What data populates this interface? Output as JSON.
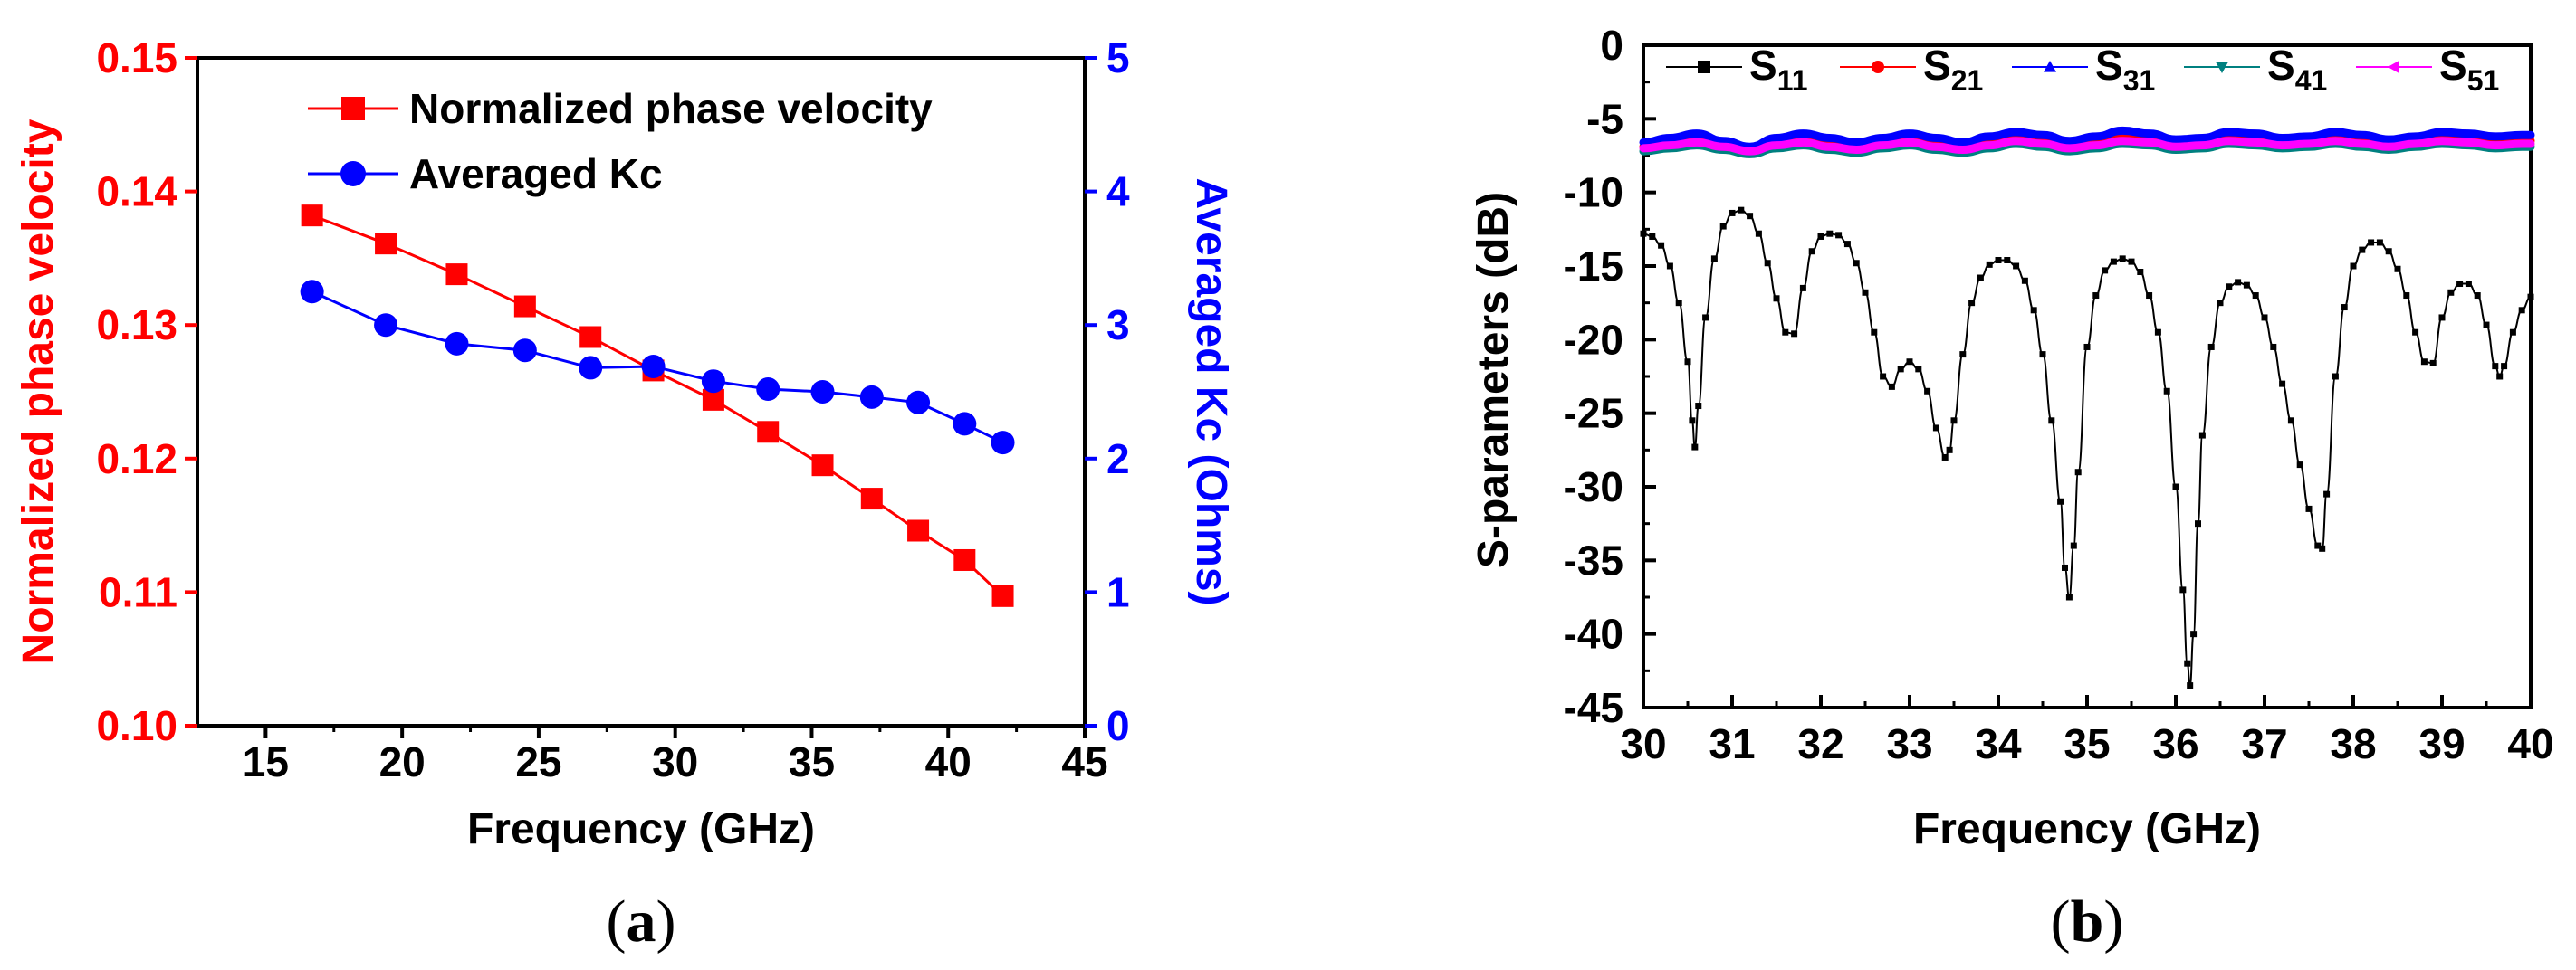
{
  "colors": {
    "red": "#ff0000",
    "blue": "#0000ff",
    "black": "#000000",
    "green": "#008080",
    "magenta": "#ff00ff"
  },
  "captions": {
    "a": {
      "open": "(",
      "letter": "a",
      "close": ")"
    },
    "b": {
      "open": "(",
      "letter": "b",
      "close": ")"
    }
  },
  "chart_data": [
    {
      "id": "a",
      "type": "line",
      "xlabel": "Frequency (GHz)",
      "ylabel_left": "Normalized phase velocity",
      "ylabel_right": "Averaged Kc (Ohms)",
      "xlim": [
        12.5,
        45
      ],
      "ylim_left": [
        0.1,
        0.15
      ],
      "ylim_right": [
        0,
        5
      ],
      "xticks": [
        "15",
        "20",
        "25",
        "30",
        "35",
        "40",
        "45"
      ],
      "yticks_left": [
        "0.10",
        "0.11",
        "0.12",
        "0.13",
        "0.14",
        "0.15"
      ],
      "yticks_right": [
        "0",
        "1",
        "2",
        "3",
        "4",
        "5"
      ],
      "legend_position": "top-right",
      "series": [
        {
          "name": "Normalized phase velocity",
          "axis": "left",
          "marker": "square",
          "color": "#ff0000",
          "x": [
            16.7,
            19.4,
            22.0,
            24.5,
            26.9,
            29.2,
            31.4,
            33.4,
            35.4,
            37.2,
            38.9,
            40.6,
            42.0
          ],
          "y": [
            0.1382,
            0.1361,
            0.1338,
            0.1314,
            0.1291,
            0.1266,
            0.1244,
            0.122,
            0.1195,
            0.117,
            0.1146,
            0.1124,
            0.1097
          ]
        },
        {
          "name": "Averaged Kc",
          "axis": "right",
          "marker": "circle",
          "color": "#0000ff",
          "x": [
            16.7,
            19.4,
            22.0,
            24.5,
            26.9,
            29.2,
            31.4,
            33.4,
            35.4,
            37.2,
            38.9,
            40.6,
            42.0
          ],
          "y": [
            3.25,
            3.0,
            2.86,
            2.81,
            2.68,
            2.69,
            2.58,
            2.52,
            2.5,
            2.46,
            2.42,
            2.26,
            2.12
          ]
        }
      ]
    },
    {
      "id": "b",
      "type": "line",
      "xlabel": "Frequency (GHz)",
      "ylabel": "S-parameters (dB)",
      "xlim": [
        30,
        40
      ],
      "ylim": [
        -45,
        0
      ],
      "xticks": [
        "30",
        "31",
        "32",
        "33",
        "34",
        "35",
        "36",
        "37",
        "38",
        "39",
        "40"
      ],
      "yticks": [
        "0",
        "-5",
        "-10",
        "-15",
        "-20",
        "-25",
        "-30",
        "-35",
        "-40",
        "-45"
      ],
      "legend_position": "top",
      "series": [
        {
          "name": "S",
          "sub": "11",
          "color": "#000000",
          "marker": "square",
          "x": [
            30.0,
            30.1,
            30.2,
            30.3,
            30.4,
            30.5,
            30.55,
            30.58,
            30.62,
            30.7,
            30.8,
            30.9,
            31.0,
            31.1,
            31.2,
            31.3,
            31.4,
            31.5,
            31.6,
            31.7,
            31.8,
            31.9,
            32.0,
            32.1,
            32.2,
            32.3,
            32.4,
            32.5,
            32.6,
            32.7,
            32.8,
            32.9,
            33.0,
            33.1,
            33.2,
            33.3,
            33.4,
            33.45,
            33.5,
            33.6,
            33.7,
            33.8,
            33.9,
            34.0,
            34.1,
            34.2,
            34.3,
            34.4,
            34.5,
            34.6,
            34.7,
            34.75,
            34.8,
            34.85,
            34.9,
            35.0,
            35.1,
            35.2,
            35.3,
            35.4,
            35.5,
            35.6,
            35.7,
            35.8,
            35.9,
            36.0,
            36.08,
            36.13,
            36.16,
            36.2,
            36.25,
            36.3,
            36.4,
            36.5,
            36.6,
            36.7,
            36.8,
            36.9,
            37.0,
            37.1,
            37.2,
            37.3,
            37.4,
            37.5,
            37.6,
            37.65,
            37.7,
            37.8,
            37.9,
            38.0,
            38.1,
            38.2,
            38.3,
            38.4,
            38.5,
            38.6,
            38.7,
            38.8,
            38.9,
            39.0,
            39.1,
            39.2,
            39.3,
            39.4,
            39.5,
            39.6,
            39.65,
            39.7,
            39.8,
            39.9,
            40.0
          ],
          "y": [
            -12.8,
            -13.0,
            -13.6,
            -15.0,
            -17.5,
            -21.5,
            -25.5,
            -27.3,
            -24.5,
            -18.5,
            -14.5,
            -12.3,
            -11.4,
            -11.2,
            -11.6,
            -12.8,
            -14.8,
            -17.2,
            -19.5,
            -19.6,
            -16.5,
            -14.0,
            -13.0,
            -12.8,
            -12.9,
            -13.5,
            -14.8,
            -16.8,
            -19.5,
            -22.5,
            -23.2,
            -22.0,
            -21.5,
            -22.0,
            -23.5,
            -26.0,
            -28.0,
            -27.5,
            -25.5,
            -21.0,
            -17.5,
            -15.8,
            -14.9,
            -14.6,
            -14.6,
            -15.0,
            -16.0,
            -18.0,
            -21.0,
            -25.5,
            -31.0,
            -35.5,
            -37.5,
            -34.0,
            -29.0,
            -20.5,
            -17.0,
            -15.3,
            -14.7,
            -14.5,
            -14.7,
            -15.4,
            -17.0,
            -19.5,
            -23.5,
            -30.0,
            -37.0,
            -42.0,
            -43.5,
            -40.0,
            -32.5,
            -26.5,
            -20.5,
            -17.5,
            -16.4,
            -16.1,
            -16.3,
            -17.0,
            -18.5,
            -20.5,
            -23.0,
            -25.5,
            -28.5,
            -31.5,
            -34.0,
            -34.2,
            -30.5,
            -22.5,
            -17.8,
            -15.0,
            -13.9,
            -13.4,
            -13.4,
            -14.0,
            -15.2,
            -17.0,
            -19.5,
            -21.5,
            -21.6,
            -18.5,
            -16.8,
            -16.2,
            -16.2,
            -17.0,
            -19.0,
            -21.8,
            -22.5,
            -21.8,
            -19.5,
            -18.0,
            -17.1
          ]
        },
        {
          "name": "S",
          "sub": "21",
          "color": "#ff0000",
          "marker": "circle",
          "x": [
            30.0,
            30.3,
            30.6,
            30.9,
            31.2,
            31.5,
            31.8,
            32.1,
            32.4,
            32.7,
            33.0,
            33.3,
            33.6,
            33.9,
            34.2,
            34.5,
            34.8,
            35.1,
            35.4,
            35.7,
            36.0,
            36.3,
            36.6,
            36.9,
            37.2,
            37.5,
            37.8,
            38.1,
            38.4,
            38.7,
            39.0,
            39.3,
            39.6,
            39.9,
            40.0
          ],
          "y": [
            -6.9,
            -6.7,
            -6.5,
            -6.8,
            -7.0,
            -6.6,
            -6.4,
            -6.7,
            -6.9,
            -6.6,
            -6.4,
            -6.7,
            -6.9,
            -6.6,
            -6.3,
            -6.5,
            -6.8,
            -6.6,
            -6.3,
            -6.4,
            -6.7,
            -6.6,
            -6.3,
            -6.4,
            -6.6,
            -6.5,
            -6.3,
            -6.5,
            -6.7,
            -6.5,
            -6.3,
            -6.4,
            -6.6,
            -6.5,
            -6.5
          ]
        },
        {
          "name": "S",
          "sub": "31",
          "color": "#0000ff",
          "marker": "triangle",
          "x": [
            30.0,
            30.3,
            30.6,
            30.9,
            31.2,
            31.5,
            31.8,
            32.1,
            32.4,
            32.7,
            33.0,
            33.3,
            33.6,
            33.9,
            34.2,
            34.5,
            34.8,
            35.1,
            35.4,
            35.7,
            36.0,
            36.3,
            36.6,
            36.9,
            37.2,
            37.5,
            37.8,
            38.1,
            38.4,
            38.7,
            39.0,
            39.3,
            39.6,
            39.9,
            40.0
          ],
          "y": [
            -6.6,
            -6.3,
            -6.0,
            -6.5,
            -6.9,
            -6.3,
            -6.0,
            -6.3,
            -6.6,
            -6.3,
            -6.0,
            -6.3,
            -6.6,
            -6.2,
            -5.9,
            -6.1,
            -6.5,
            -6.2,
            -5.8,
            -6.0,
            -6.4,
            -6.3,
            -5.9,
            -6.0,
            -6.3,
            -6.2,
            -5.9,
            -6.1,
            -6.4,
            -6.2,
            -5.9,
            -6.0,
            -6.2,
            -6.1,
            -6.1
          ]
        },
        {
          "name": "S",
          "sub": "41",
          "color": "#008080",
          "marker": "triangle-down",
          "x": [
            30.0,
            30.3,
            30.6,
            30.9,
            31.2,
            31.5,
            31.8,
            32.1,
            32.4,
            32.7,
            33.0,
            33.3,
            33.6,
            33.9,
            34.2,
            34.5,
            34.8,
            35.1,
            35.4,
            35.7,
            36.0,
            36.3,
            36.6,
            36.9,
            37.2,
            37.5,
            37.8,
            38.1,
            38.4,
            38.7,
            39.0,
            39.3,
            39.6,
            39.9,
            40.0
          ],
          "y": [
            -7.2,
            -7.0,
            -6.8,
            -7.1,
            -7.4,
            -7.0,
            -6.8,
            -7.1,
            -7.3,
            -7.0,
            -6.8,
            -7.1,
            -7.3,
            -7.0,
            -6.7,
            -6.9,
            -7.2,
            -7.0,
            -6.7,
            -6.8,
            -7.1,
            -7.0,
            -6.7,
            -6.8,
            -7.0,
            -6.9,
            -6.7,
            -6.9,
            -7.1,
            -6.9,
            -6.7,
            -6.8,
            -7.0,
            -6.9,
            -6.9
          ]
        },
        {
          "name": "S",
          "sub": "51",
          "color": "#ff00ff",
          "marker": "triangle-left",
          "x": [
            30.0,
            30.3,
            30.6,
            30.9,
            31.2,
            31.5,
            31.8,
            32.1,
            32.4,
            32.7,
            33.0,
            33.3,
            33.6,
            33.9,
            34.2,
            34.5,
            34.8,
            35.1,
            35.4,
            35.7,
            36.0,
            36.3,
            36.6,
            36.9,
            37.2,
            37.5,
            37.8,
            38.1,
            38.4,
            38.7,
            39.0,
            39.3,
            39.6,
            39.9,
            40.0
          ],
          "y": [
            -7.0,
            -6.8,
            -6.6,
            -6.9,
            -7.2,
            -6.8,
            -6.6,
            -6.9,
            -7.1,
            -6.8,
            -6.6,
            -6.9,
            -7.1,
            -6.8,
            -6.5,
            -6.7,
            -7.0,
            -6.8,
            -6.5,
            -6.6,
            -6.9,
            -6.8,
            -6.5,
            -6.6,
            -6.8,
            -6.7,
            -6.5,
            -6.7,
            -6.9,
            -6.7,
            -6.5,
            -6.6,
            -6.8,
            -6.7,
            -6.7
          ]
        }
      ]
    }
  ]
}
